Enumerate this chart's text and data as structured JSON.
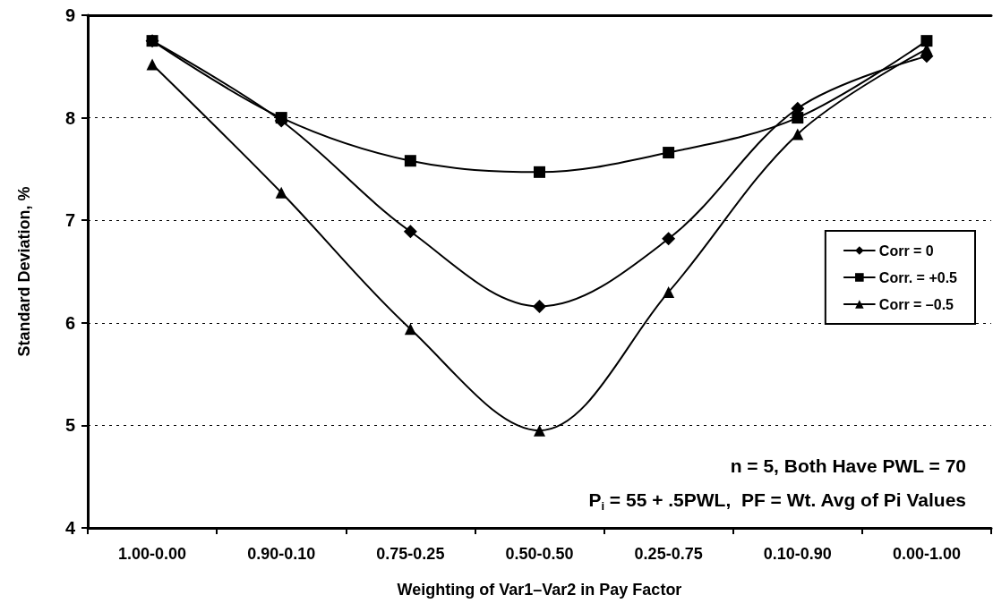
{
  "chart_data": {
    "type": "line",
    "xlabel": "Weighting of Var1–Var2 in Pay Factor",
    "ylabel": "Standard Deviation, %",
    "categories": [
      "1.00-0.00",
      "0.90-0.10",
      "0.75-0.25",
      "0.50-0.50",
      "0.25-0.75",
      "0.10-0.90",
      "0.00-1.00"
    ],
    "series": [
      {
        "name": "Corr = 0",
        "color": "#000000",
        "marker": "diamond",
        "values": [
          8.75,
          7.97,
          6.89,
          6.16,
          6.82,
          8.09,
          8.6
        ]
      },
      {
        "name": "Corr. = +0.5",
        "color": "#000000",
        "marker": "square",
        "values": [
          8.75,
          8.0,
          7.58,
          7.47,
          7.66,
          8.0,
          8.75
        ]
      },
      {
        "name": "Corr = –0.5",
        "color": "#000000",
        "marker": "triangle",
        "values": [
          8.52,
          7.27,
          5.94,
          4.95,
          6.3,
          7.84,
          8.67
        ]
      }
    ],
    "ylim": [
      4,
      9
    ],
    "yticks": [
      4,
      5,
      6,
      7,
      8,
      9
    ],
    "grid": "y",
    "legend": "right",
    "line_style": "solid",
    "annotations": [
      "n = 5, Both Have PWL = 70",
      "P$_{i}$ = 55 + .5PWL,  PF = Wt. Avg of Pi Values"
    ]
  }
}
